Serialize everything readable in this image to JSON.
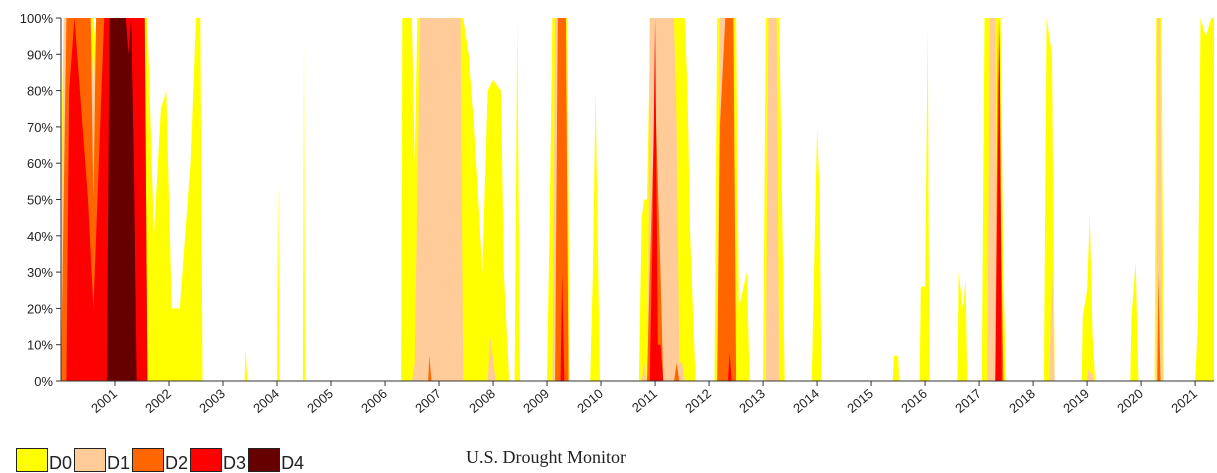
{
  "chart_data": {
    "type": "area",
    "title": "",
    "xlabel": "",
    "ylabel": "",
    "source": "U.S. Drought Monitor",
    "x_range": [
      2000.0,
      2021.35
    ],
    "ylim": [
      0,
      100
    ],
    "yticks": [
      "0%",
      "10%",
      "20%",
      "30%",
      "40%",
      "50%",
      "60%",
      "70%",
      "80%",
      "90%",
      "100%"
    ],
    "xticks": [
      "2001",
      "2002",
      "2003",
      "2004",
      "2005",
      "2006",
      "2007",
      "2008",
      "2009",
      "2010",
      "2011",
      "2012",
      "2013",
      "2014",
      "2015",
      "2016",
      "2017",
      "2018",
      "2019",
      "2020",
      "2021"
    ],
    "grid": false,
    "legend_position": "bottom-left",
    "series": [
      {
        "name": "D0",
        "color": "#ffff00",
        "points": [
          [
            2000.0,
            60
          ],
          [
            2000.05,
            100
          ],
          [
            2000.6,
            100
          ],
          [
            2000.72,
            80
          ],
          [
            2000.8,
            100
          ],
          [
            2001.6,
            100
          ],
          [
            2001.72,
            40
          ],
          [
            2001.85,
            75
          ],
          [
            2001.95,
            80
          ],
          [
            2002.05,
            20
          ],
          [
            2002.2,
            20
          ],
          [
            2002.3,
            40
          ],
          [
            2002.4,
            60
          ],
          [
            2002.5,
            100
          ],
          [
            2002.58,
            100
          ],
          [
            2002.62,
            0
          ],
          [
            2003.4,
            0
          ],
          [
            2003.42,
            9
          ],
          [
            2003.45,
            0
          ],
          [
            2004.0,
            0
          ],
          [
            2004.02,
            55
          ],
          [
            2004.05,
            0
          ],
          [
            2004.48,
            0
          ],
          [
            2004.5,
            95
          ],
          [
            2004.52,
            0
          ],
          [
            2006.3,
            0
          ],
          [
            2006.32,
            100
          ],
          [
            2006.5,
            100
          ],
          [
            2006.55,
            60
          ],
          [
            2006.6,
            100
          ],
          [
            2007.45,
            100
          ],
          [
            2007.55,
            90
          ],
          [
            2007.65,
            70
          ],
          [
            2007.8,
            30
          ],
          [
            2007.9,
            80
          ],
          [
            2008.0,
            83
          ],
          [
            2008.15,
            80
          ],
          [
            2008.2,
            30
          ],
          [
            2008.3,
            0
          ],
          [
            2008.4,
            0
          ],
          [
            2008.45,
            100
          ],
          [
            2008.5,
            0
          ],
          [
            2009.0,
            0
          ],
          [
            2009.05,
            45
          ],
          [
            2009.1,
            100
          ],
          [
            2009.38,
            100
          ],
          [
            2009.42,
            0
          ],
          [
            2009.8,
            0
          ],
          [
            2009.85,
            30
          ],
          [
            2009.9,
            80
          ],
          [
            2009.98,
            0
          ],
          [
            2010.7,
            0
          ],
          [
            2010.75,
            45
          ],
          [
            2010.8,
            50
          ],
          [
            2010.85,
            50
          ],
          [
            2010.9,
            90
          ],
          [
            2011.0,
            100
          ],
          [
            2011.55,
            100
          ],
          [
            2011.6,
            80
          ],
          [
            2011.65,
            40
          ],
          [
            2011.75,
            0
          ],
          [
            2012.1,
            0
          ],
          [
            2012.15,
            100
          ],
          [
            2012.5,
            100
          ],
          [
            2012.55,
            20
          ],
          [
            2012.7,
            30
          ],
          [
            2012.75,
            0
          ],
          [
            2013.0,
            0
          ],
          [
            2013.05,
            100
          ],
          [
            2013.3,
            100
          ],
          [
            2013.35,
            50
          ],
          [
            2013.4,
            0
          ],
          [
            2013.9,
            0
          ],
          [
            2013.92,
            12
          ],
          [
            2014.0,
            70
          ],
          [
            2014.05,
            50
          ],
          [
            2014.08,
            0
          ],
          [
            2015.4,
            0
          ],
          [
            2015.42,
            7
          ],
          [
            2015.5,
            7
          ],
          [
            2015.52,
            0
          ],
          [
            2015.9,
            0
          ],
          [
            2015.92,
            26
          ],
          [
            2016.0,
            26
          ],
          [
            2016.05,
            98
          ],
          [
            2016.08,
            0
          ],
          [
            2016.6,
            0
          ],
          [
            2016.62,
            30
          ],
          [
            2016.7,
            20
          ],
          [
            2016.75,
            28
          ],
          [
            2016.78,
            0
          ],
          [
            2017.05,
            0
          ],
          [
            2017.1,
            100
          ],
          [
            2017.4,
            100
          ],
          [
            2017.45,
            30
          ],
          [
            2017.5,
            0
          ],
          [
            2018.2,
            0
          ],
          [
            2018.25,
            100
          ],
          [
            2018.35,
            90
          ],
          [
            2018.4,
            0
          ],
          [
            2018.9,
            0
          ],
          [
            2018.92,
            18
          ],
          [
            2019.0,
            25
          ],
          [
            2019.05,
            46
          ],
          [
            2019.1,
            13
          ],
          [
            2019.15,
            0
          ],
          [
            2019.8,
            0
          ],
          [
            2019.82,
            17
          ],
          [
            2019.9,
            33
          ],
          [
            2019.95,
            0
          ],
          [
            2020.25,
            0
          ],
          [
            2020.28,
            100
          ],
          [
            2020.38,
            100
          ],
          [
            2020.42,
            0
          ],
          [
            2021.0,
            0
          ],
          [
            2021.05,
            15
          ],
          [
            2021.1,
            100
          ],
          [
            2021.2,
            95
          ],
          [
            2021.3,
            100
          ],
          [
            2021.35,
            100
          ]
        ]
      },
      {
        "name": "D1",
        "color": "#ffcc99",
        "points": [
          [
            2000.0,
            20
          ],
          [
            2000.05,
            100
          ],
          [
            2000.55,
            100
          ],
          [
            2000.6,
            80
          ],
          [
            2000.65,
            100
          ],
          [
            2001.5,
            100
          ],
          [
            2001.55,
            0
          ],
          [
            2006.5,
            0
          ],
          [
            2006.55,
            5
          ],
          [
            2006.65,
            100
          ],
          [
            2007.4,
            100
          ],
          [
            2007.45,
            0
          ],
          [
            2007.9,
            0
          ],
          [
            2007.95,
            12
          ],
          [
            2008.05,
            0
          ],
          [
            2009.1,
            0
          ],
          [
            2009.15,
            100
          ],
          [
            2009.35,
            100
          ],
          [
            2009.4,
            0
          ],
          [
            2010.75,
            0
          ],
          [
            2010.8,
            5
          ],
          [
            2010.85,
            0
          ],
          [
            2010.88,
            40
          ],
          [
            2010.9,
            100
          ],
          [
            2011.35,
            100
          ],
          [
            2011.4,
            70
          ],
          [
            2011.45,
            5
          ],
          [
            2011.5,
            5
          ],
          [
            2011.55,
            0
          ],
          [
            2012.15,
            0
          ],
          [
            2012.2,
            100
          ],
          [
            2012.45,
            100
          ],
          [
            2012.5,
            0
          ],
          [
            2013.05,
            0
          ],
          [
            2013.1,
            100
          ],
          [
            2013.25,
            100
          ],
          [
            2013.3,
            0
          ],
          [
            2017.15,
            0
          ],
          [
            2017.2,
            100
          ],
          [
            2017.3,
            100
          ],
          [
            2017.35,
            0
          ],
          [
            2018.3,
            0
          ],
          [
            2018.35,
            32
          ],
          [
            2018.4,
            0
          ],
          [
            2019.0,
            0
          ],
          [
            2019.02,
            3
          ],
          [
            2019.1,
            2
          ],
          [
            2019.12,
            0
          ],
          [
            2020.28,
            0
          ],
          [
            2020.3,
            100
          ],
          [
            2020.35,
            100
          ],
          [
            2020.4,
            0
          ],
          [
            2021.35,
            0
          ]
        ]
      },
      {
        "name": "D2",
        "color": "#ff6600",
        "points": [
          [
            2000.0,
            0
          ],
          [
            2000.05,
            50
          ],
          [
            2000.1,
            100
          ],
          [
            2000.55,
            100
          ],
          [
            2000.6,
            50
          ],
          [
            2000.65,
            100
          ],
          [
            2001.55,
            100
          ],
          [
            2001.6,
            0
          ],
          [
            2006.8,
            0
          ],
          [
            2006.82,
            7
          ],
          [
            2006.86,
            0
          ],
          [
            2009.15,
            0
          ],
          [
            2009.2,
            100
          ],
          [
            2009.35,
            100
          ],
          [
            2009.4,
            0
          ],
          [
            2010.85,
            0
          ],
          [
            2010.9,
            30
          ],
          [
            2011.0,
            80
          ],
          [
            2011.1,
            30
          ],
          [
            2011.15,
            0
          ],
          [
            2011.35,
            0
          ],
          [
            2011.4,
            5
          ],
          [
            2011.45,
            0
          ],
          [
            2012.15,
            0
          ],
          [
            2012.2,
            70
          ],
          [
            2012.3,
            100
          ],
          [
            2012.45,
            100
          ],
          [
            2012.5,
            0
          ],
          [
            2017.3,
            0
          ],
          [
            2017.35,
            100
          ],
          [
            2017.45,
            0
          ],
          [
            2020.3,
            0
          ],
          [
            2020.32,
            30
          ],
          [
            2020.36,
            0
          ],
          [
            2021.35,
            0
          ]
        ]
      },
      {
        "name": "D3",
        "color": "#ff0000",
        "points": [
          [
            2000.0,
            0
          ],
          [
            2000.1,
            0
          ],
          [
            2000.15,
            80
          ],
          [
            2000.25,
            100
          ],
          [
            2000.5,
            50
          ],
          [
            2000.6,
            20
          ],
          [
            2000.7,
            60
          ],
          [
            2000.8,
            100
          ],
          [
            2001.55,
            100
          ],
          [
            2001.6,
            0
          ],
          [
            2009.25,
            0
          ],
          [
            2009.28,
            30
          ],
          [
            2009.32,
            0
          ],
          [
            2010.9,
            0
          ],
          [
            2010.95,
            40
          ],
          [
            2011.0,
            100
          ],
          [
            2011.05,
            10
          ],
          [
            2011.1,
            10
          ],
          [
            2011.15,
            0
          ],
          [
            2012.35,
            0
          ],
          [
            2012.38,
            8
          ],
          [
            2012.42,
            0
          ],
          [
            2017.3,
            0
          ],
          [
            2017.35,
            64
          ],
          [
            2017.38,
            100
          ],
          [
            2017.42,
            0
          ],
          [
            2021.35,
            0
          ]
        ]
      },
      {
        "name": "D4",
        "color": "#660000",
        "points": [
          [
            2000.0,
            0
          ],
          [
            2000.85,
            0
          ],
          [
            2000.9,
            100
          ],
          [
            2001.2,
            100
          ],
          [
            2001.25,
            90
          ],
          [
            2001.3,
            100
          ],
          [
            2001.35,
            60
          ],
          [
            2001.4,
            0
          ],
          [
            2021.35,
            0
          ]
        ]
      }
    ]
  }
}
